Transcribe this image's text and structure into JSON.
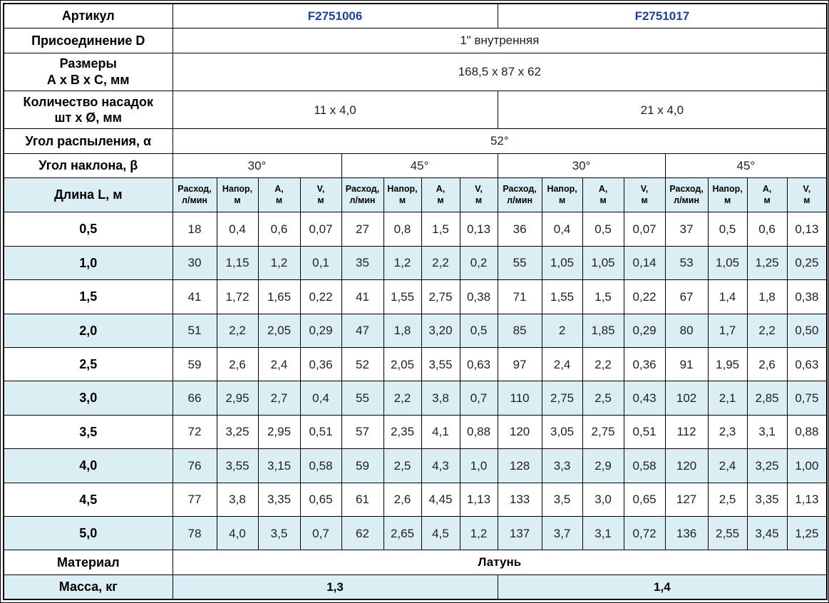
{
  "colors": {
    "accent_blue": "#1b4298",
    "band_blue": "#daeef3",
    "border": "#000000"
  },
  "table": {
    "article": {
      "label": "Артикул",
      "values": [
        "F2751006",
        "F2751017"
      ]
    },
    "connection": {
      "label": "Присоединение D",
      "value": "1\" внутренняя"
    },
    "dimensions": {
      "label_line1": "Размеры",
      "label_line2": "А х В х С, мм",
      "value": "168,5 х 87 х 62"
    },
    "nozzles": {
      "label_line1": "Количество насадок",
      "label_line2": "шт х Ø, мм",
      "values": [
        "11 х 4,0",
        "21 х 4,0"
      ]
    },
    "spray_angle": {
      "label": "Угол распыления, α",
      "value": "52°"
    },
    "tilt_angle": {
      "label": "Угол наклона, β",
      "values": [
        "30°",
        "45°",
        "30°",
        "45°"
      ]
    },
    "flow_header": {
      "label": "Длина L, м",
      "subcols": [
        [
          "Расход,",
          "л/мин"
        ],
        [
          "Напор,",
          "м"
        ],
        [
          "А,",
          "м"
        ],
        [
          "V,",
          "м"
        ]
      ]
    },
    "data_rows": [
      {
        "length": "0,5",
        "values": [
          "18",
          "0,4",
          "0,6",
          "0,07",
          "27",
          "0,8",
          "1,5",
          "0,13",
          "36",
          "0,4",
          "0,5",
          "0,07",
          "37",
          "0,5",
          "0,6",
          "0,13"
        ]
      },
      {
        "length": "1,0",
        "values": [
          "30",
          "1,15",
          "1,2",
          "0,1",
          "35",
          "1,2",
          "2,2",
          "0,2",
          "55",
          "1,05",
          "1,05",
          "0,14",
          "53",
          "1,05",
          "1,25",
          "0,25"
        ]
      },
      {
        "length": "1,5",
        "values": [
          "41",
          "1,72",
          "1,65",
          "0,22",
          "41",
          "1,55",
          "2,75",
          "0,38",
          "71",
          "1,55",
          "1,5",
          "0,22",
          "67",
          "1,4",
          "1,8",
          "0,38"
        ]
      },
      {
        "length": "2,0",
        "values": [
          "51",
          "2,2",
          "2,05",
          "0,29",
          "47",
          "1,8",
          "3,20",
          "0,5",
          "85",
          "2",
          "1,85",
          "0,29",
          "80",
          "1,7",
          "2,2",
          "0,50"
        ]
      },
      {
        "length": "2,5",
        "values": [
          "59",
          "2,6",
          "2,4",
          "0,36",
          "52",
          "2,05",
          "3,55",
          "0,63",
          "97",
          "2,4",
          "2,2",
          "0,36",
          "91",
          "1,95",
          "2,6",
          "0,63"
        ]
      },
      {
        "length": "3,0",
        "values": [
          "66",
          "2,95",
          "2,7",
          "0,4",
          "55",
          "2,2",
          "3,8",
          "0,7",
          "110",
          "2,75",
          "2,5",
          "0,43",
          "102",
          "2,1",
          "2,85",
          "0,75"
        ]
      },
      {
        "length": "3,5",
        "values": [
          "72",
          "3,25",
          "2,95",
          "0,51",
          "57",
          "2,35",
          "4,1",
          "0,88",
          "120",
          "3,05",
          "2,75",
          "0,51",
          "112",
          "2,3",
          "3,1",
          "0,88"
        ]
      },
      {
        "length": "4,0",
        "values": [
          "76",
          "3,55",
          "3,15",
          "0,58",
          "59",
          "2,5",
          "4,3",
          "1,0",
          "128",
          "3,3",
          "2,9",
          "0,58",
          "120",
          "2,4",
          "3,25",
          "1,00"
        ]
      },
      {
        "length": "4,5",
        "values": [
          "77",
          "3,8",
          "3,35",
          "0,65",
          "61",
          "2,6",
          "4,45",
          "1,13",
          "133",
          "3,5",
          "3,0",
          "0,65",
          "127",
          "2,5",
          "3,35",
          "1,13"
        ]
      },
      {
        "length": "5,0",
        "values": [
          "78",
          "4,0",
          "3,5",
          "0,7",
          "62",
          "2,65",
          "4,5",
          "1,2",
          "137",
          "3,7",
          "3,1",
          "0,72",
          "136",
          "2,55",
          "3,45",
          "1,25"
        ]
      }
    ],
    "material": {
      "label": "Материал",
      "value": "Латунь"
    },
    "mass": {
      "label": "Масса, кг",
      "values": [
        "1,3",
        "1,4"
      ]
    }
  }
}
